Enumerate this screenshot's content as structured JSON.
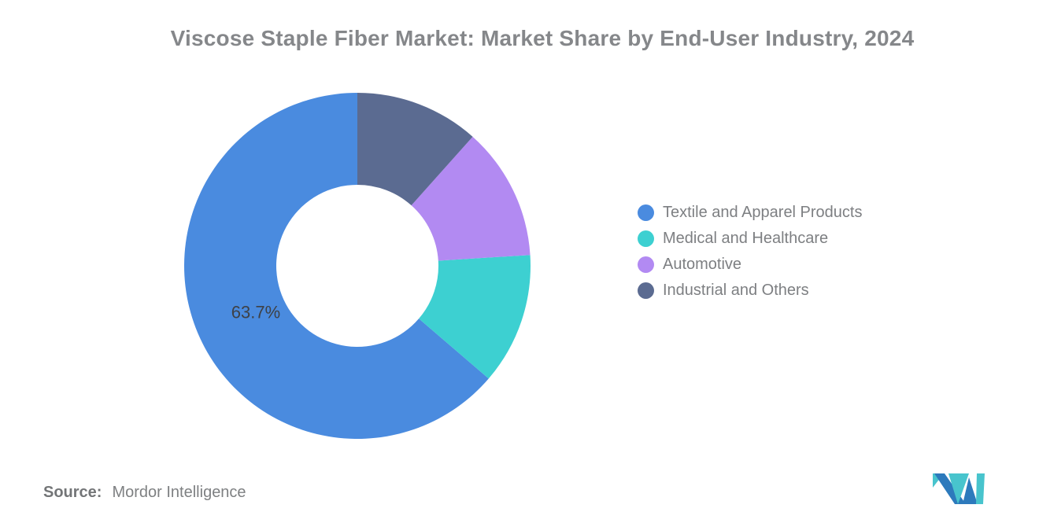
{
  "chart_data": {
    "type": "pie",
    "subtype": "donut",
    "title": "Viscose Staple Fiber Market: Market Share by End-User Industry, 2024",
    "unit": "%",
    "total": 100,
    "start_angle_deg": 0,
    "direction": "counterclockwise",
    "inner_radius_ratio": 0.47,
    "legend_position": "right",
    "series": [
      {
        "name": "Textile and Apparel Products",
        "value": 63.7,
        "color": "#4a8bdf",
        "data_label": "63.7%"
      },
      {
        "name": "Medical and Healthcare",
        "value": 12.3,
        "color": "#3dd0d1",
        "data_label": ""
      },
      {
        "name": "Automotive",
        "value": 12.4,
        "color": "#b28af2",
        "data_label": ""
      },
      {
        "name": "Industrial and Others",
        "value": 11.6,
        "color": "#5b6b91",
        "data_label": ""
      }
    ]
  },
  "source": {
    "label": "Source:",
    "value": "Mordor Intelligence"
  },
  "logo": {
    "teal": "#48c4cd",
    "blue": "#2d7abc"
  },
  "label_color": "#3e4146"
}
